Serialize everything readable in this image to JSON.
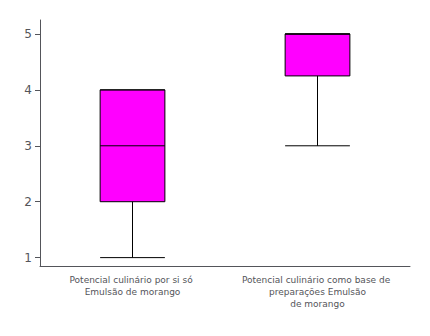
{
  "chart_data": {
    "type": "boxplot",
    "categories": [
      "Potencial culinário por si só Emulsão de morango",
      "Potencial culinário como base de preparações Emulsão\nde morango"
    ],
    "values": [
      [
        1.0,
        2.0,
        3.0,
        4.0,
        4.0
      ],
      [
        3.0,
        4.25,
        5.0,
        5.0,
        5.0
      ]
    ],
    "color": "#FF00FF",
    "ylim": [
      0.85,
      5.25
    ],
    "yticks": [
      1,
      2,
      3,
      4,
      5
    ],
    "grid": false
  }
}
